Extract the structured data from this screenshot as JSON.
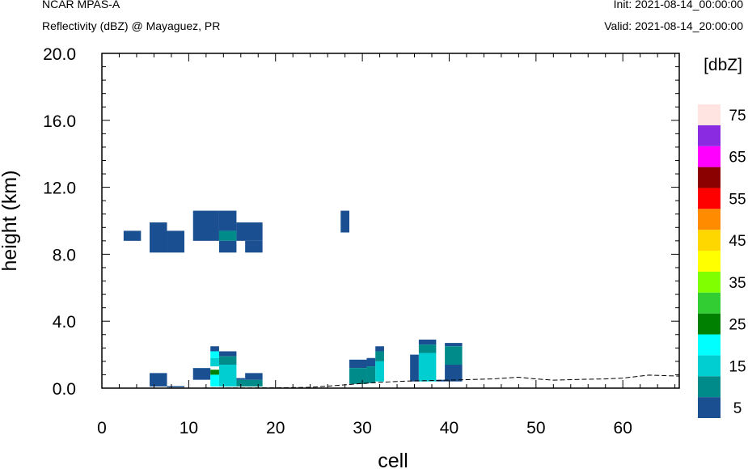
{
  "header": {
    "model": "NCAR MPAS-A",
    "field": "Reflectivity (dBZ) @ Mayaguez, PR",
    "init": "Init: 2021-08-14_00:00:00",
    "valid": "Valid: 2021-08-14_20:00:00"
  },
  "chart_data": {
    "type": "heatmap",
    "xlabel": "cell",
    "ylabel": "height (km)",
    "xlim": [
      0,
      66.5
    ],
    "ylim": [
      0,
      20
    ],
    "x_ticks": [
      "0",
      "10",
      "20",
      "30",
      "40",
      "50",
      "60"
    ],
    "y_ticks": [
      "0.0",
      "4.0",
      "8.0",
      "12.0",
      "16.0",
      "20.0"
    ],
    "colorbar": {
      "title": "[dbZ]",
      "labels": [
        "5",
        "15",
        "25",
        "35",
        "45",
        "55",
        "65",
        "75"
      ],
      "levels": [
        5,
        10,
        15,
        20,
        25,
        30,
        35,
        40,
        45,
        50,
        55,
        60,
        65,
        70,
        75
      ],
      "colors": [
        "#1a5091",
        "#008b8b",
        "#00ced1",
        "#00ffff",
        "#008000",
        "#32cd32",
        "#7fff00",
        "#ffff00",
        "#ffd700",
        "#ff8c00",
        "#ff0000",
        "#8b0000",
        "#ff00ff",
        "#8a2be2",
        "#ffe4e1"
      ]
    },
    "cells": [
      {
        "x0": 2.5,
        "x1": 4.5,
        "y0": 8.8,
        "y1": 9.4,
        "dbz": 5
      },
      {
        "x0": 5.5,
        "x1": 7.5,
        "y0": 8.1,
        "y1": 9.9,
        "dbz": 5
      },
      {
        "x0": 7.5,
        "x1": 9.5,
        "y0": 8.1,
        "y1": 9.4,
        "dbz": 5
      },
      {
        "x0": 10.5,
        "x1": 13.5,
        "y0": 8.8,
        "y1": 10.6,
        "dbz": 5
      },
      {
        "x0": 13.5,
        "x1": 15.5,
        "y0": 9.4,
        "y1": 10.6,
        "dbz": 5
      },
      {
        "x0": 13.5,
        "x1": 15.5,
        "y0": 8.8,
        "y1": 9.4,
        "dbz": 10
      },
      {
        "x0": 13.5,
        "x1": 15.5,
        "y0": 8.1,
        "y1": 8.8,
        "dbz": 5
      },
      {
        "x0": 15.5,
        "x1": 18.5,
        "y0": 8.8,
        "y1": 9.9,
        "dbz": 5
      },
      {
        "x0": 16.5,
        "x1": 18.5,
        "y0": 8.1,
        "y1": 8.8,
        "dbz": 5
      },
      {
        "x0": 27.5,
        "x1": 28.5,
        "y0": 9.3,
        "y1": 10.6,
        "dbz": 5
      },
      {
        "x0": 5.5,
        "x1": 7.5,
        "y0": 0.1,
        "y1": 0.9,
        "dbz": 5
      },
      {
        "x0": 7.5,
        "x1": 9.5,
        "y0": 0.05,
        "y1": 0.12,
        "dbz": 5
      },
      {
        "x0": 10.5,
        "x1": 12.5,
        "y0": 0.5,
        "y1": 1.2,
        "dbz": 5
      },
      {
        "x0": 12.5,
        "x1": 13.5,
        "y0": 2.2,
        "y1": 2.5,
        "dbz": 5
      },
      {
        "x0": 12.5,
        "x1": 13.5,
        "y0": 1.8,
        "y1": 2.2,
        "dbz": 20
      },
      {
        "x0": 12.5,
        "x1": 13.5,
        "y0": 1.3,
        "y1": 1.8,
        "dbz": 15
      },
      {
        "x0": 12.5,
        "x1": 13.5,
        "y0": 0.8,
        "y1": 1.1,
        "dbz": 25
      },
      {
        "x0": 12.5,
        "x1": 13.5,
        "y0": 0.1,
        "y1": 0.8,
        "dbz": 20
      },
      {
        "x0": 13.5,
        "x1": 15.5,
        "y0": 1.9,
        "y1": 2.2,
        "dbz": 5
      },
      {
        "x0": 13.5,
        "x1": 15.5,
        "y0": 1.4,
        "y1": 1.9,
        "dbz": 10
      },
      {
        "x0": 13.5,
        "x1": 15.5,
        "y0": 0.1,
        "y1": 1.4,
        "dbz": 15
      },
      {
        "x0": 15.5,
        "x1": 16.5,
        "y0": 0.5,
        "y1": 0.6,
        "dbz": 5
      },
      {
        "x0": 15.5,
        "x1": 18.5,
        "y0": 0.1,
        "y1": 0.5,
        "dbz": 10
      },
      {
        "x0": 16.5,
        "x1": 18.5,
        "y0": 0.5,
        "y1": 0.9,
        "dbz": 5
      },
      {
        "x0": 28.5,
        "x1": 30.5,
        "y0": 1.2,
        "y1": 1.7,
        "dbz": 5
      },
      {
        "x0": 28.5,
        "x1": 30.5,
        "y0": 0.25,
        "y1": 1.2,
        "dbz": 10
      },
      {
        "x0": 30.5,
        "x1": 31.5,
        "y0": 1.3,
        "y1": 1.8,
        "dbz": 5
      },
      {
        "x0": 30.5,
        "x1": 31.5,
        "y0": 0.3,
        "y1": 1.3,
        "dbz": 10
      },
      {
        "x0": 31.5,
        "x1": 32.5,
        "y0": 2.2,
        "y1": 2.5,
        "dbz": 5
      },
      {
        "x0": 31.5,
        "x1": 32.5,
        "y0": 1.6,
        "y1": 2.2,
        "dbz": 10
      },
      {
        "x0": 31.5,
        "x1": 32.5,
        "y0": 0.4,
        "y1": 1.6,
        "dbz": 15
      },
      {
        "x0": 35.5,
        "x1": 36.5,
        "y0": 0.4,
        "y1": 2.0,
        "dbz": 5
      },
      {
        "x0": 36.5,
        "x1": 38.5,
        "y0": 2.6,
        "y1": 2.9,
        "dbz": 5
      },
      {
        "x0": 36.5,
        "x1": 38.5,
        "y0": 2.1,
        "y1": 2.6,
        "dbz": 10
      },
      {
        "x0": 36.5,
        "x1": 38.5,
        "y0": 0.4,
        "y1": 2.1,
        "dbz": 15
      },
      {
        "x0": 38.5,
        "x1": 39.5,
        "y0": 0.4,
        "y1": 0.5,
        "dbz": 5
      },
      {
        "x0": 39.5,
        "x1": 41.5,
        "y0": 2.5,
        "y1": 2.7,
        "dbz": 5
      },
      {
        "x0": 39.5,
        "x1": 41.5,
        "y0": 1.4,
        "y1": 2.5,
        "dbz": 10
      },
      {
        "x0": 39.5,
        "x1": 41.5,
        "y0": 0.4,
        "y1": 1.4,
        "dbz": 5
      }
    ],
    "terrain": [
      [
        0,
        0.0
      ],
      [
        10,
        0.0
      ],
      [
        20,
        0.02
      ],
      [
        24,
        0.05
      ],
      [
        26,
        0.12
      ],
      [
        28,
        0.2
      ],
      [
        30,
        0.28
      ],
      [
        32,
        0.35
      ],
      [
        35,
        0.42
      ],
      [
        40,
        0.48
      ],
      [
        45,
        0.55
      ],
      [
        48,
        0.65
      ],
      [
        50,
        0.55
      ],
      [
        52,
        0.48
      ],
      [
        55,
        0.52
      ],
      [
        58,
        0.55
      ],
      [
        60,
        0.6
      ],
      [
        63,
        0.78
      ],
      [
        66.5,
        0.72
      ]
    ]
  }
}
